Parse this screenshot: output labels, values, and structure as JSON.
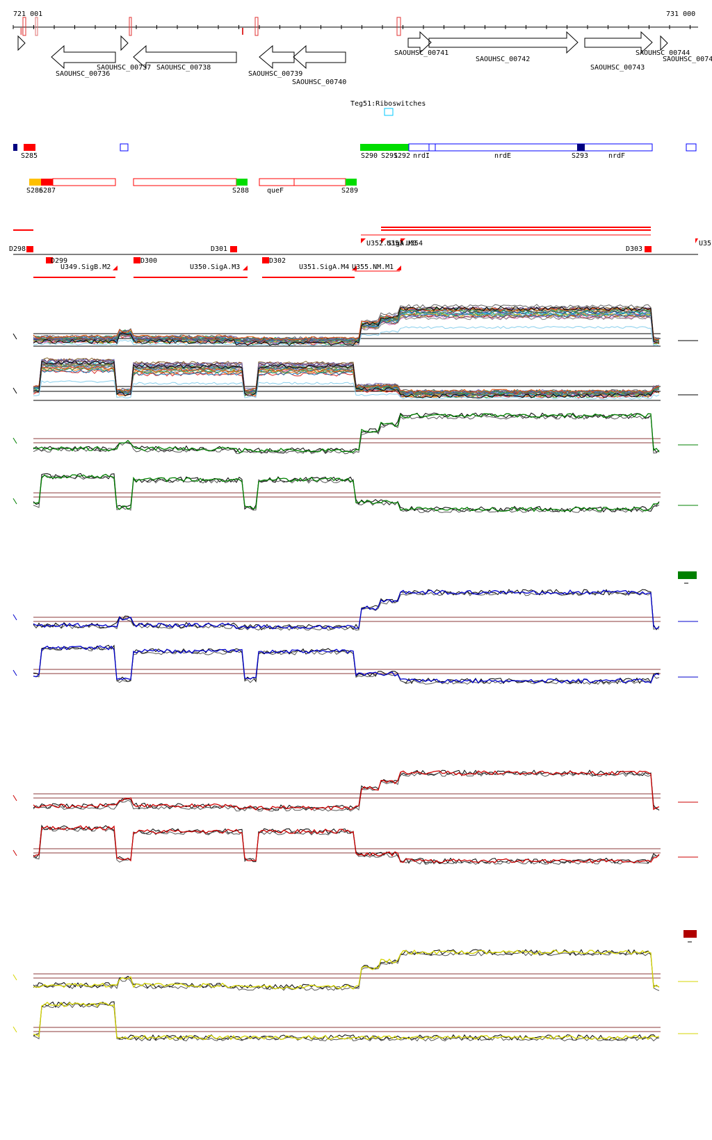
{
  "ruler": {
    "start_label": "721 001",
    "end_label": "731 000"
  },
  "genes": [
    {
      "id": "g736",
      "label": "SAOUHSC_00736",
      "strand": "-"
    },
    {
      "id": "g737",
      "label": "SAOUHSC_00737",
      "strand": "-"
    },
    {
      "id": "g738",
      "label": "SAOUHSC_00738",
      "strand": "-"
    },
    {
      "id": "g739",
      "label": "SAOUHSC_00739",
      "strand": "-"
    },
    {
      "id": "g740",
      "label": "SAOUHSC_00740",
      "strand": "-"
    },
    {
      "id": "g741",
      "label": "SAOUHSC_00741",
      "strand": "+"
    },
    {
      "id": "g742",
      "label": "SAOUHSC_00742",
      "strand": "+"
    },
    {
      "id": "g743",
      "label": "SAOUHSC_00743",
      "strand": "+"
    },
    {
      "id": "g744",
      "label": "SAOUHSC_00744",
      "strand": "+"
    },
    {
      "id": "g74x",
      "label": "SAOUHSC_0074",
      "strand": "+"
    }
  ],
  "riboswitch": {
    "label": "Teg51:Riboswitches"
  },
  "segments_plus": [
    "S285",
    "S290",
    "S291",
    "S292",
    "nrdI",
    "nrdE",
    "S293",
    "nrdF"
  ],
  "segments_minus": [
    "S286",
    "S287",
    "S288",
    "queF",
    "S289"
  ],
  "promoters": {
    "top": [
      "D298",
      "D301",
      "D303",
      "U352.SigA.M3",
      "U353",
      "U354",
      "U35"
    ],
    "bottom": [
      "D299",
      "U349.SigB.M2",
      "D300",
      "U350.SigA.M3",
      "D302",
      "U351.SigA.M4",
      "U355.NM.M1"
    ]
  },
  "colors": {
    "gene": "#000000",
    "segment_red": "#ff0000",
    "segment_green": "#00dd00",
    "segment_blue": "#0000ff",
    "segment_navy": "#000080",
    "segment_gold": "#ffc000",
    "riboswitch": "#00c8ff",
    "track_green": "#008000",
    "track_blue": "#0000cc",
    "track_red": "#cc0000",
    "track_yellow": "#d4d400",
    "baseline": "#8b3a3a",
    "legend_green": "#008000",
    "legend_red": "#b00000"
  }
}
